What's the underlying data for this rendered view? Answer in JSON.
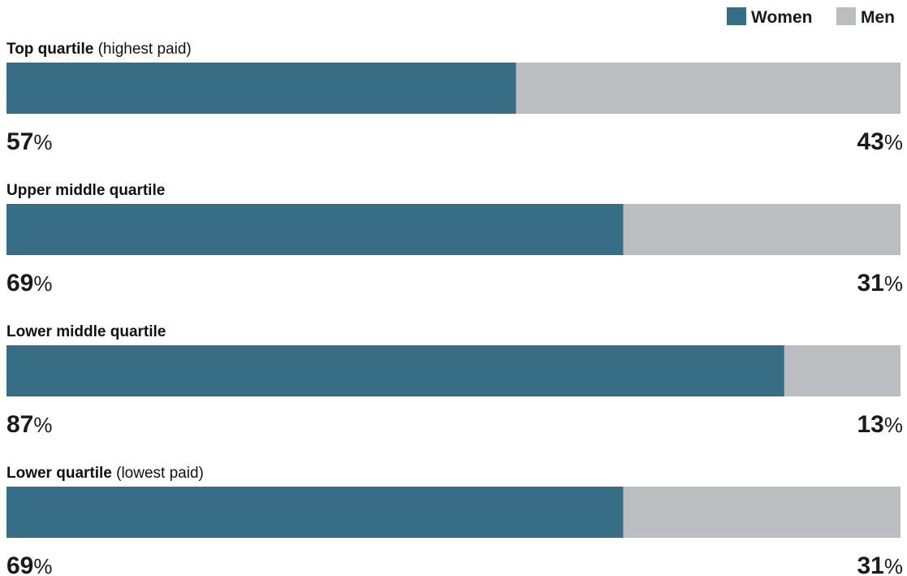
{
  "chart_data": {
    "type": "bar",
    "orientation": "horizontal",
    "stacked": true,
    "normalized_percent": true,
    "categories": [
      {
        "label": "Top quartile",
        "note": "(highest paid)"
      },
      {
        "label": "Upper middle quartile",
        "note": ""
      },
      {
        "label": "Lower middle quartile",
        "note": ""
      },
      {
        "label": "Lower quartile",
        "note": "(lowest paid)"
      }
    ],
    "series": [
      {
        "name": "Women",
        "color": "#376e85",
        "values": [
          57,
          69,
          87,
          69
        ]
      },
      {
        "name": "Men",
        "color": "#bcbdc0",
        "values": [
          43,
          31,
          13,
          31
        ]
      }
    ],
    "unit": "%",
    "xlim": [
      0,
      100
    ],
    "grid": false,
    "legend_position": "top-right"
  }
}
